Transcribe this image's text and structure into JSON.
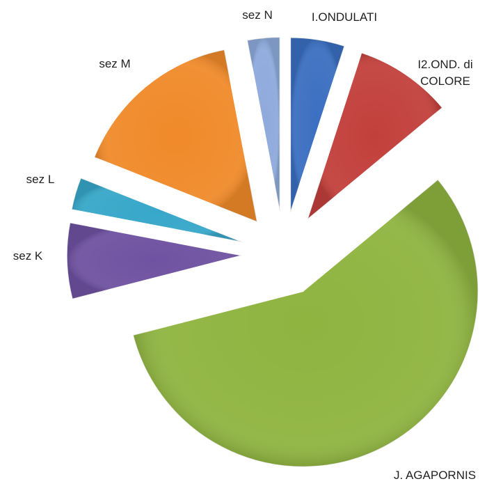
{
  "chart_data": {
    "type": "pie",
    "categories": [
      "I.ONDULATI",
      "I2.OND. di COLORE",
      "J. AGAPORNIS",
      "sez K",
      "sez L",
      "sez M",
      "sez N"
    ],
    "values": [
      5,
      9,
      57,
      7,
      3,
      16,
      3
    ],
    "colors": [
      "#3b6fc1",
      "#c2403c",
      "#8fb440",
      "#6f52a1",
      "#37a7c9",
      "#f08a2a",
      "#8eaadc"
    ],
    "exploded": true
  }
}
